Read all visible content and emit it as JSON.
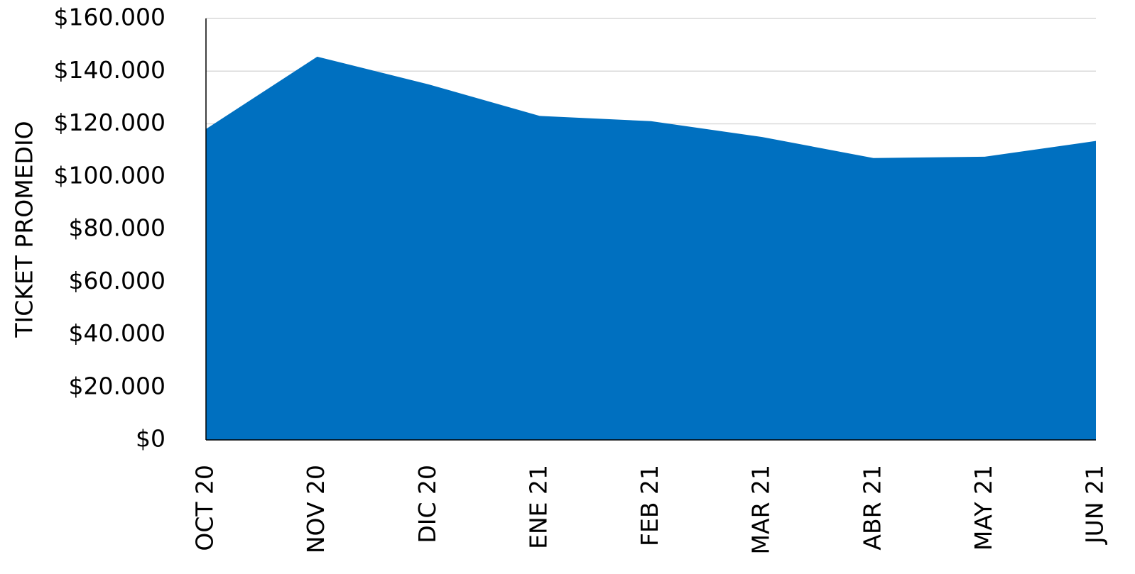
{
  "chart_data": {
    "type": "area",
    "ylabel": "TICKET PROMEDIO",
    "categories": [
      "OCT 20",
      "NOV 20",
      "DIC 20",
      "ENE 21",
      "FEB 21",
      "MAR 21",
      "ABR 21",
      "MAY 21",
      "JUN 21"
    ],
    "values": [
      118000,
      145500,
      135000,
      123000,
      121000,
      115000,
      107000,
      107500,
      113500
    ],
    "color": "#0070c0",
    "ylim": [
      0,
      160000
    ],
    "yticks": [
      {
        "value": 0,
        "label": "$0"
      },
      {
        "value": 20000,
        "label": "$20.000"
      },
      {
        "value": 40000,
        "label": "$40.000"
      },
      {
        "value": 60000,
        "label": "$60.000"
      },
      {
        "value": 80000,
        "label": "$80.000"
      },
      {
        "value": 100000,
        "label": "$100.000"
      },
      {
        "value": 120000,
        "label": "$120.000"
      },
      {
        "value": 140000,
        "label": "$140.000"
      },
      {
        "value": 160000,
        "label": "$160.000"
      }
    ],
    "grid": true
  }
}
